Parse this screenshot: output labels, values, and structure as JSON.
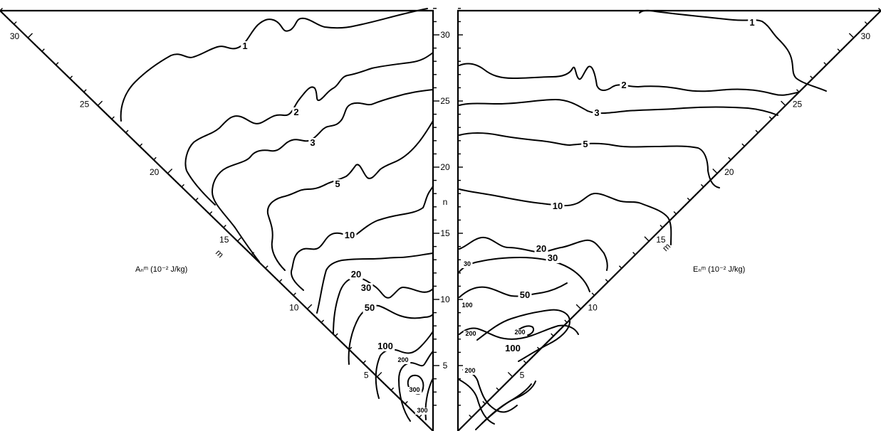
{
  "chart_data": [
    {
      "type": "contour",
      "quantity_label": "Aₙᵐ (10⁻² J/kg)",
      "n_axis_label": "n",
      "m_axis_label": "m",
      "n_ticks": [
        "5",
        "10",
        "15",
        "20",
        "25",
        "30"
      ],
      "m_ticks": [
        "5",
        "10",
        "15",
        "20",
        "25",
        "30"
      ],
      "contour_levels": [
        1,
        2,
        3,
        5,
        10,
        20,
        30,
        50,
        100,
        200,
        300
      ],
      "contour_labels": [
        "1",
        "2",
        "3",
        "5",
        "10",
        "20",
        "30",
        "50",
        "100",
        "200",
        "300",
        "300"
      ],
      "axis_ranges": {
        "n": [
          1,
          32
        ],
        "m": [
          1,
          32
        ]
      }
    },
    {
      "type": "contour",
      "quantity_label": "Eₙᵐ (10⁻² J/kg)",
      "n_axis_label": "n",
      "m_axis_label": "m",
      "n_ticks": [
        "5",
        "10",
        "15",
        "20",
        "25",
        "30"
      ],
      "m_ticks": [
        "5",
        "10",
        "15",
        "20",
        "25",
        "30"
      ],
      "contour_levels": [
        1,
        2,
        3,
        5,
        10,
        20,
        30,
        50,
        100,
        200
      ],
      "contour_labels": [
        "1",
        "2",
        "3",
        "5",
        "10",
        "20",
        "30",
        "50",
        "100",
        "200",
        "200",
        "30",
        "100",
        "200"
      ],
      "axis_ranges": {
        "n": [
          1,
          32
        ],
        "m": [
          1,
          32
        ]
      }
    }
  ]
}
